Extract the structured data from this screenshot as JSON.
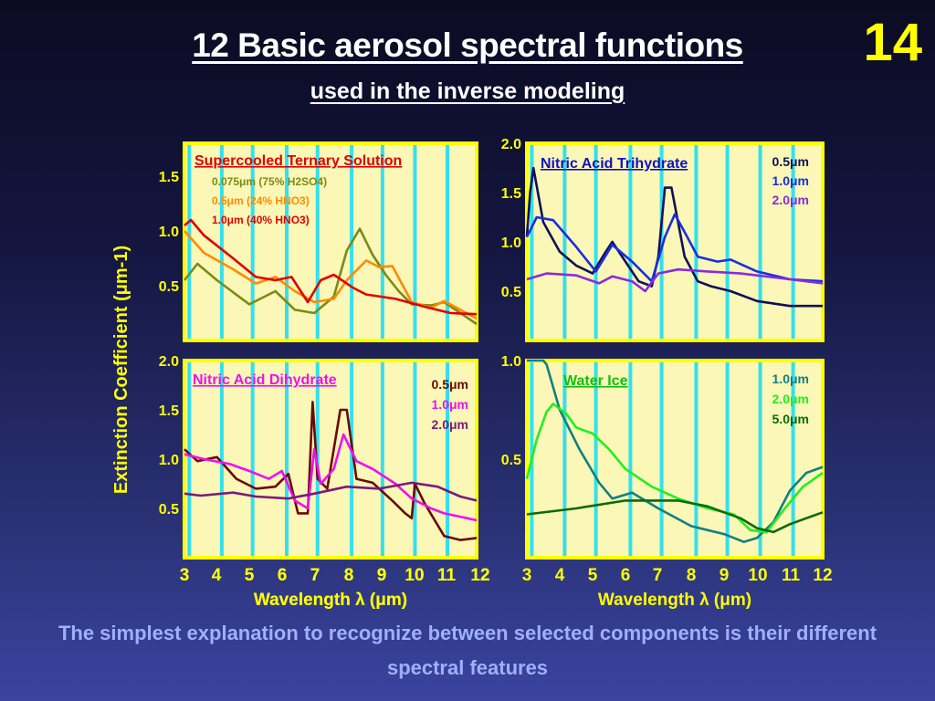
{
  "slide_number": "14",
  "title": "12 Basic aerosol spectral functions",
  "subtitle": "used in the inverse modeling",
  "caption": "The simplest explanation to recognize between selected components is their different spectral features",
  "colors": {
    "background": "#1a1c50",
    "panel_bg": "#fbf7b6",
    "panel_border": "#ffff00",
    "gridline": "#33e0ee",
    "axis_text": "#ffff00"
  },
  "chart_data": [
    {
      "type": "line",
      "title": "Supercooled Ternary Solution",
      "title_color": "#e00000",
      "xlabel": "Wavelength λ (μm)",
      "ylabel": "Extinction Coefficient (μm-1)",
      "xlim": [
        3,
        12
      ],
      "ylim": [
        0,
        1.8
      ],
      "x_ticks": [
        "3",
        "4",
        "5",
        "6",
        "7",
        "8",
        "9",
        "10",
        "11",
        "12"
      ],
      "y_ticks": [
        "0.5",
        "1.0",
        "1.5"
      ],
      "series": [
        {
          "name": "0.075μm (75% H2SO4)",
          "color": "#7a8a1a",
          "points": [
            [
              3,
              0.55
            ],
            [
              3.4,
              0.7
            ],
            [
              4,
              0.55
            ],
            [
              5,
              0.33
            ],
            [
              5.8,
              0.45
            ],
            [
              6.4,
              0.28
            ],
            [
              7,
              0.25
            ],
            [
              7.6,
              0.4
            ],
            [
              8,
              0.82
            ],
            [
              8.4,
              1.02
            ],
            [
              8.8,
              0.78
            ],
            [
              9.2,
              0.6
            ],
            [
              9.6,
              0.45
            ],
            [
              10,
              0.33
            ],
            [
              10.6,
              0.32
            ],
            [
              11,
              0.35
            ],
            [
              12,
              0.15
            ]
          ]
        },
        {
          "name": "0.5μm (24% HNO3)",
          "color": "#ff8a00",
          "points": [
            [
              3,
              1.0
            ],
            [
              3.6,
              0.8
            ],
            [
              4.5,
              0.65
            ],
            [
              5.2,
              0.52
            ],
            [
              5.8,
              0.58
            ],
            [
              6.4,
              0.45
            ],
            [
              7,
              0.35
            ],
            [
              7.6,
              0.38
            ],
            [
              8,
              0.55
            ],
            [
              8.6,
              0.73
            ],
            [
              9,
              0.67
            ],
            [
              9.4,
              0.68
            ],
            [
              10,
              0.35
            ],
            [
              10.6,
              0.3
            ],
            [
              11,
              0.36
            ],
            [
              12,
              0.2
            ]
          ]
        },
        {
          "name": "1.0μm (40% HNO3)",
          "color": "#e00000",
          "points": [
            [
              3,
              1.05
            ],
            [
              3.2,
              1.1
            ],
            [
              3.6,
              0.96
            ],
            [
              4.5,
              0.75
            ],
            [
              5.2,
              0.58
            ],
            [
              5.8,
              0.55
            ],
            [
              6.3,
              0.58
            ],
            [
              6.8,
              0.35
            ],
            [
              7.2,
              0.55
            ],
            [
              7.6,
              0.6
            ],
            [
              8.2,
              0.48
            ],
            [
              8.6,
              0.42
            ],
            [
              9.5,
              0.38
            ],
            [
              10.5,
              0.3
            ],
            [
              11.2,
              0.25
            ],
            [
              12,
              0.24
            ]
          ]
        }
      ]
    },
    {
      "type": "line",
      "title": "Nitric Acid Trihydrate",
      "title_color": "#1010c8",
      "xlabel": "",
      "ylabel": "",
      "xlim": [
        3,
        12
      ],
      "ylim": [
        0,
        2.0
      ],
      "x_ticks": [],
      "y_ticks": [
        "0.5",
        "1.0",
        "1.5",
        "2.0"
      ],
      "series": [
        {
          "name": "0.5μm",
          "color": "#10105a",
          "points": [
            [
              3,
              1.05
            ],
            [
              3.1,
              1.5
            ],
            [
              3.2,
              1.75
            ],
            [
              3.5,
              1.2
            ],
            [
              4,
              0.9
            ],
            [
              4.5,
              0.76
            ],
            [
              5,
              0.68
            ],
            [
              5.4,
              0.9
            ],
            [
              5.6,
              1.0
            ],
            [
              6,
              0.8
            ],
            [
              6.4,
              0.6
            ],
            [
              6.8,
              0.55
            ],
            [
              7,
              0.85
            ],
            [
              7.2,
              1.55
            ],
            [
              7.4,
              1.55
            ],
            [
              7.8,
              0.85
            ],
            [
              8.2,
              0.6
            ],
            [
              8.6,
              0.55
            ],
            [
              9.2,
              0.5
            ],
            [
              10,
              0.4
            ],
            [
              11,
              0.35
            ],
            [
              12,
              0.35
            ]
          ]
        },
        {
          "name": "1.0μm",
          "color": "#1a2ee0",
          "points": [
            [
              3,
              1.05
            ],
            [
              3.3,
              1.25
            ],
            [
              3.8,
              1.22
            ],
            [
              4.5,
              0.95
            ],
            [
              5.1,
              0.7
            ],
            [
              5.6,
              0.97
            ],
            [
              6.2,
              0.8
            ],
            [
              6.8,
              0.6
            ],
            [
              7.2,
              1.05
            ],
            [
              7.5,
              1.28
            ],
            [
              7.8,
              1.1
            ],
            [
              8.2,
              0.85
            ],
            [
              8.8,
              0.8
            ],
            [
              9.2,
              0.82
            ],
            [
              10,
              0.7
            ],
            [
              11,
              0.62
            ],
            [
              12,
              0.6
            ]
          ]
        },
        {
          "name": "2.0μm",
          "color": "#8a2ae0",
          "points": [
            [
              3,
              0.62
            ],
            [
              3.6,
              0.68
            ],
            [
              4.5,
              0.66
            ],
            [
              5.2,
              0.58
            ],
            [
              5.6,
              0.65
            ],
            [
              6.2,
              0.6
            ],
            [
              6.6,
              0.5
            ],
            [
              7,
              0.68
            ],
            [
              7.6,
              0.72
            ],
            [
              8.5,
              0.7
            ],
            [
              9.5,
              0.68
            ],
            [
              11,
              0.62
            ],
            [
              12,
              0.58
            ]
          ]
        }
      ]
    },
    {
      "type": "line",
      "title": "Nitric Acid Dihydrate",
      "title_color": "#ee10ee",
      "xlabel": "Wavelength λ (μm)",
      "ylabel": "",
      "xlim": [
        3,
        12
      ],
      "ylim": [
        0,
        2.0
      ],
      "x_ticks": [
        "3",
        "4",
        "5",
        "6",
        "7",
        "8",
        "9",
        "10",
        "11",
        "12"
      ],
      "y_ticks": [
        "0.5",
        "1.0",
        "1.5",
        "2.0"
      ],
      "series": [
        {
          "name": "0.5μm",
          "color": "#6a0a0a",
          "points": [
            [
              3,
              1.1
            ],
            [
              3.4,
              0.98
            ],
            [
              4,
              1.02
            ],
            [
              4.6,
              0.8
            ],
            [
              5.2,
              0.7
            ],
            [
              5.8,
              0.72
            ],
            [
              6.2,
              0.85
            ],
            [
              6.5,
              0.45
            ],
            [
              6.8,
              0.45
            ],
            [
              6.95,
              1.58
            ],
            [
              7.1,
              0.8
            ],
            [
              7.4,
              0.7
            ],
            [
              7.8,
              1.5
            ],
            [
              8,
              1.5
            ],
            [
              8.3,
              0.8
            ],
            [
              8.8,
              0.76
            ],
            [
              9.4,
              0.58
            ],
            [
              9.8,
              0.45
            ],
            [
              10,
              0.4
            ],
            [
              10.1,
              0.75
            ],
            [
              10.4,
              0.55
            ],
            [
              11,
              0.22
            ],
            [
              11.5,
              0.18
            ],
            [
              12,
              0.2
            ]
          ]
        },
        {
          "name": "1.0μm",
          "color": "#ee10ee",
          "points": [
            [
              3,
              1.05
            ],
            [
              3.6,
              1.0
            ],
            [
              4.4,
              0.95
            ],
            [
              5,
              0.88
            ],
            [
              5.6,
              0.8
            ],
            [
              6,
              0.88
            ],
            [
              6.4,
              0.58
            ],
            [
              6.8,
              0.5
            ],
            [
              7,
              1.1
            ],
            [
              7.2,
              0.75
            ],
            [
              7.6,
              0.9
            ],
            [
              7.9,
              1.25
            ],
            [
              8.3,
              0.98
            ],
            [
              8.8,
              0.9
            ],
            [
              9.5,
              0.75
            ],
            [
              10,
              0.6
            ],
            [
              10.6,
              0.5
            ],
            [
              11,
              0.45
            ],
            [
              12,
              0.38
            ]
          ]
        },
        {
          "name": "2.0μm",
          "color": "#7a1a7a",
          "points": [
            [
              3,
              0.65
            ],
            [
              3.5,
              0.63
            ],
            [
              4.5,
              0.66
            ],
            [
              5.2,
              0.62
            ],
            [
              6.2,
              0.6
            ],
            [
              7,
              0.65
            ],
            [
              8,
              0.72
            ],
            [
              9,
              0.7
            ],
            [
              10,
              0.76
            ],
            [
              10.8,
              0.72
            ],
            [
              11.5,
              0.62
            ],
            [
              12,
              0.58
            ]
          ]
        }
      ]
    },
    {
      "type": "line",
      "title": "Water Ice",
      "title_color": "#10c010",
      "xlabel": "Wavelength λ (μm)",
      "ylabel": "",
      "xlim": [
        3,
        12
      ],
      "ylim": [
        0,
        1.0
      ],
      "x_ticks": [
        "3",
        "4",
        "5",
        "6",
        "7",
        "8",
        "9",
        "10",
        "11",
        "12"
      ],
      "y_ticks": [
        "0.5",
        "1.0"
      ],
      "series": [
        {
          "name": "1.0μm",
          "color": "#108080",
          "points": [
            [
              3,
              1.0
            ],
            [
              3.5,
              1.0
            ],
            [
              3.6,
              0.98
            ],
            [
              4,
              0.75
            ],
            [
              4.6,
              0.55
            ],
            [
              5.2,
              0.38
            ],
            [
              5.6,
              0.3
            ],
            [
              6.2,
              0.33
            ],
            [
              7,
              0.25
            ],
            [
              8,
              0.16
            ],
            [
              9,
              0.12
            ],
            [
              9.6,
              0.08
            ],
            [
              10,
              0.1
            ],
            [
              10.5,
              0.18
            ],
            [
              11,
              0.34
            ],
            [
              11.5,
              0.43
            ],
            [
              12,
              0.46
            ]
          ]
        },
        {
          "name": "2.0μm",
          "color": "#22ee22",
          "points": [
            [
              3,
              0.4
            ],
            [
              3.3,
              0.6
            ],
            [
              3.6,
              0.74
            ],
            [
              3.8,
              0.78
            ],
            [
              4.2,
              0.73
            ],
            [
              4.5,
              0.66
            ],
            [
              5,
              0.63
            ],
            [
              5.5,
              0.55
            ],
            [
              6,
              0.45
            ],
            [
              6.8,
              0.36
            ],
            [
              7.6,
              0.3
            ],
            [
              8.5,
              0.25
            ],
            [
              9.3,
              0.22
            ],
            [
              9.8,
              0.14
            ],
            [
              10.3,
              0.13
            ],
            [
              10.8,
              0.24
            ],
            [
              11.4,
              0.36
            ],
            [
              12,
              0.43
            ]
          ]
        },
        {
          "name": "5.0μm",
          "color": "#0a6a0a",
          "points": [
            [
              3,
              0.22
            ],
            [
              4.5,
              0.25
            ],
            [
              6,
              0.29
            ],
            [
              7.6,
              0.29
            ],
            [
              8.5,
              0.26
            ],
            [
              9.5,
              0.2
            ],
            [
              10,
              0.15
            ],
            [
              10.5,
              0.13
            ],
            [
              11,
              0.17
            ],
            [
              12,
              0.23
            ]
          ]
        }
      ]
    }
  ]
}
